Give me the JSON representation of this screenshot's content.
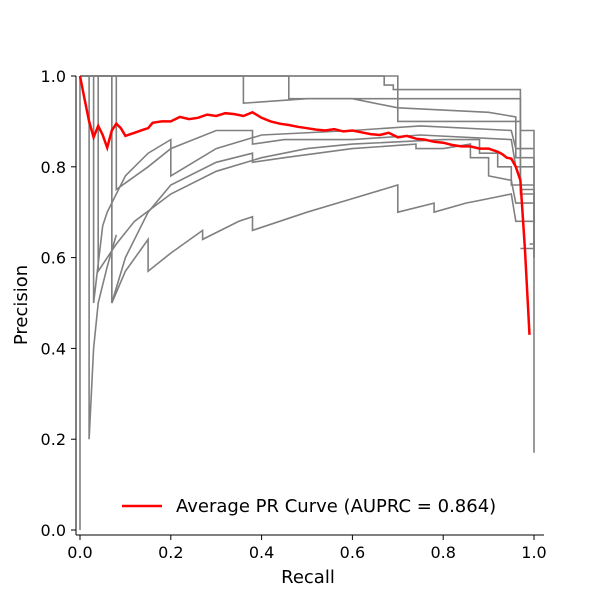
{
  "chart_data": {
    "type": "line",
    "title": "",
    "xlabel": "Recall",
    "ylabel": "Precision",
    "xlim": [
      0,
      1
    ],
    "ylim": [
      0,
      1
    ],
    "xticks": [
      0.0,
      0.2,
      0.4,
      0.6,
      0.8,
      1.0
    ],
    "yticks": [
      0.0,
      0.2,
      0.4,
      0.6,
      0.8,
      1.0
    ],
    "xtick_labels": [
      "0.0",
      "0.2",
      "0.4",
      "0.6",
      "0.8",
      "1.0"
    ],
    "ytick_labels": [
      "0.0",
      "0.2",
      "0.4",
      "0.6",
      "0.8",
      "1.0"
    ],
    "grid": false,
    "legend_position": "bottom-right",
    "colors": {
      "folds": "#808080",
      "average": "#ff0000"
    },
    "fold_curves": [
      [
        [
          0,
          1
        ],
        [
          0.67,
          1
        ],
        [
          0.67,
          0.98
        ],
        [
          0.69,
          0.98
        ],
        [
          0.69,
          0.97
        ],
        [
          0.97,
          0.97
        ],
        [
          0.97,
          0.75
        ],
        [
          1,
          0.75
        ],
        [
          1,
          0.6
        ]
      ],
      [
        [
          0,
          1
        ],
        [
          0.46,
          1
        ],
        [
          0.46,
          0.95
        ],
        [
          0.97,
          0.95
        ],
        [
          0.97,
          0.88
        ],
        [
          1,
          0.88
        ],
        [
          1,
          0.17
        ]
      ],
      [
        [
          0,
          1
        ],
        [
          0.08,
          1
        ],
        [
          0.08,
          0.75
        ],
        [
          0.15,
          0.8
        ],
        [
          0.2,
          0.84
        ],
        [
          0.3,
          0.88
        ],
        [
          0.38,
          0.88
        ],
        [
          0.38,
          0.85
        ],
        [
          0.45,
          0.86
        ],
        [
          0.6,
          0.86
        ],
        [
          0.75,
          0.87
        ],
        [
          0.95,
          0.86
        ],
        [
          0.96,
          0.8
        ],
        [
          1,
          0.8
        ]
      ],
      [
        [
          0,
          1
        ],
        [
          0.03,
          1
        ],
        [
          0.03,
          0.5
        ],
        [
          0.05,
          0.67
        ],
        [
          0.06,
          0.7
        ],
        [
          0.1,
          0.78
        ],
        [
          0.15,
          0.83
        ],
        [
          0.2,
          0.86
        ],
        [
          0.2,
          0.78
        ],
        [
          0.3,
          0.84
        ],
        [
          0.4,
          0.87
        ],
        [
          0.6,
          0.88
        ],
        [
          0.75,
          0.89
        ],
        [
          0.95,
          0.88
        ],
        [
          0.96,
          0.84
        ],
        [
          1,
          0.84
        ]
      ],
      [
        [
          0,
          1
        ],
        [
          0.07,
          1
        ],
        [
          0.07,
          0.5
        ],
        [
          0.1,
          0.6
        ],
        [
          0.15,
          0.7
        ],
        [
          0.2,
          0.76
        ],
        [
          0.3,
          0.81
        ],
        [
          0.38,
          0.83
        ],
        [
          0.38,
          0.81
        ],
        [
          0.45,
          0.82
        ],
        [
          0.6,
          0.84
        ],
        [
          0.74,
          0.85
        ],
        [
          0.74,
          0.84
        ],
        [
          0.8,
          0.84
        ],
        [
          0.86,
          0.85
        ],
        [
          0.86,
          0.82
        ],
        [
          0.9,
          0.82
        ],
        [
          0.9,
          0.78
        ],
        [
          0.95,
          0.77
        ],
        [
          0.96,
          0.72
        ],
        [
          1,
          0.72
        ],
        [
          1,
          0.6
        ]
      ],
      [
        [
          0,
          1
        ],
        [
          0.04,
          1
        ],
        [
          0.04,
          0.57
        ],
        [
          0.08,
          0.63
        ],
        [
          0.12,
          0.68
        ],
        [
          0.2,
          0.74
        ],
        [
          0.3,
          0.79
        ],
        [
          0.4,
          0.82
        ],
        [
          0.5,
          0.84
        ],
        [
          0.6,
          0.85
        ],
        [
          0.8,
          0.86
        ],
        [
          0.88,
          0.86
        ],
        [
          0.88,
          0.83
        ],
        [
          0.92,
          0.83
        ],
        [
          0.92,
          0.8
        ],
        [
          0.95,
          0.8
        ],
        [
          0.95,
          0.76
        ],
        [
          1,
          0.76
        ]
      ],
      [
        [
          0,
          1
        ],
        [
          0.07,
          1
        ],
        [
          0.07,
          0.5
        ],
        [
          0.1,
          0.57
        ],
        [
          0.15,
          0.64
        ],
        [
          0.15,
          0.57
        ],
        [
          0.2,
          0.61
        ],
        [
          0.27,
          0.66
        ],
        [
          0.27,
          0.64
        ],
        [
          0.35,
          0.68
        ],
        [
          0.38,
          0.69
        ],
        [
          0.38,
          0.66
        ],
        [
          0.5,
          0.7
        ],
        [
          0.6,
          0.73
        ],
        [
          0.7,
          0.76
        ],
        [
          0.7,
          0.7
        ],
        [
          0.78,
          0.72
        ],
        [
          0.78,
          0.7
        ],
        [
          0.85,
          0.72
        ],
        [
          0.9,
          0.73
        ],
        [
          0.95,
          0.74
        ],
        [
          0.96,
          0.68
        ],
        [
          1,
          0.68
        ]
      ],
      [
        [
          0,
          1
        ],
        [
          0.7,
          1
        ],
        [
          0.7,
          0.9
        ],
        [
          0.97,
          0.9
        ],
        [
          0.97,
          0.74
        ],
        [
          1,
          0.74
        ],
        [
          1,
          0.63
        ],
        [
          0.99,
          0.63
        ]
      ],
      [
        [
          0,
          1
        ],
        [
          0.36,
          1
        ],
        [
          0.36,
          0.94
        ],
        [
          0.5,
          0.95
        ],
        [
          0.6,
          0.95
        ],
        [
          0.7,
          0.93
        ],
        [
          0.9,
          0.92
        ],
        [
          0.96,
          0.91
        ],
        [
          0.96,
          0.82
        ],
        [
          1,
          0.82
        ],
        [
          1,
          0.62
        ],
        [
          0.97,
          0.62
        ]
      ],
      [
        [
          0,
          1
        ],
        [
          0.02,
          1
        ],
        [
          0.02,
          0.2
        ],
        [
          0.03,
          0.4
        ],
        [
          0.04,
          0.5
        ],
        [
          0.06,
          0.58
        ],
        [
          0.08,
          0.65
        ]
      ],
      [
        [
          0,
          1
        ],
        [
          0,
          0
        ]
      ]
    ],
    "series": [
      {
        "name": "Average PR Curve (AUPRC = 0.864)",
        "x": [
          0,
          0.01,
          0.02,
          0.03,
          0.04,
          0.05,
          0.06,
          0.07,
          0.08,
          0.09,
          0.1,
          0.12,
          0.14,
          0.15,
          0.16,
          0.18,
          0.2,
          0.22,
          0.24,
          0.26,
          0.28,
          0.3,
          0.32,
          0.34,
          0.36,
          0.38,
          0.4,
          0.42,
          0.44,
          0.46,
          0.48,
          0.5,
          0.52,
          0.54,
          0.56,
          0.58,
          0.6,
          0.62,
          0.64,
          0.66,
          0.68,
          0.7,
          0.72,
          0.74,
          0.76,
          0.78,
          0.8,
          0.82,
          0.84,
          0.86,
          0.88,
          0.9,
          0.92,
          0.93,
          0.94,
          0.95,
          0.96,
          0.97,
          0.98,
          0.99
        ],
        "y": [
          1.0,
          0.95,
          0.9,
          0.865,
          0.89,
          0.87,
          0.842,
          0.88,
          0.895,
          0.885,
          0.868,
          0.875,
          0.882,
          0.885,
          0.897,
          0.9,
          0.9,
          0.91,
          0.905,
          0.908,
          0.915,
          0.912,
          0.918,
          0.916,
          0.912,
          0.92,
          0.908,
          0.9,
          0.895,
          0.892,
          0.888,
          0.885,
          0.882,
          0.88,
          0.883,
          0.878,
          0.88,
          0.876,
          0.872,
          0.87,
          0.875,
          0.865,
          0.868,
          0.862,
          0.86,
          0.855,
          0.853,
          0.848,
          0.845,
          0.845,
          0.84,
          0.84,
          0.833,
          0.828,
          0.82,
          0.818,
          0.8,
          0.77,
          0.62,
          0.43
        ]
      }
    ]
  }
}
